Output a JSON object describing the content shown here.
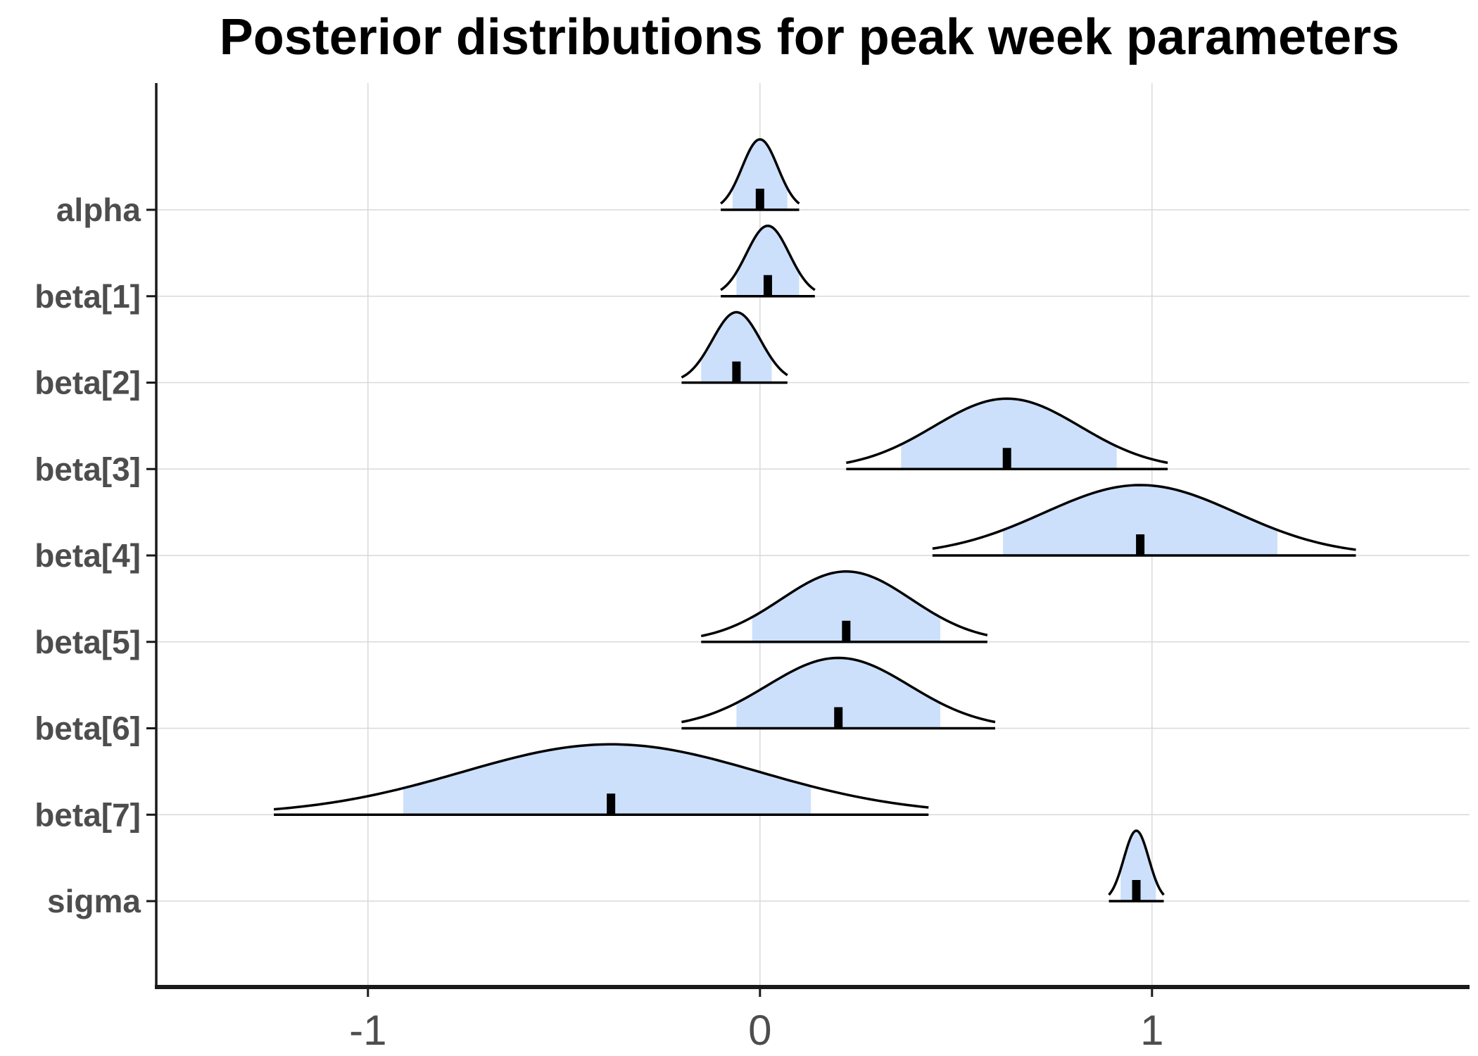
{
  "chart_data": {
    "type": "ridgeline",
    "title": "Posterior distributions for peak week parameters",
    "xlabel": "",
    "ylabel": "",
    "xlim": [
      -1.54,
      1.81
    ],
    "x_ticks": [
      -1,
      0,
      1
    ],
    "x_tick_labels": [
      "-1",
      "0",
      "1"
    ],
    "grid": true,
    "legend": "none",
    "colors": {
      "interval_fill": "#cce0fb",
      "curve": "#000000",
      "grid": "#d9d9d9",
      "axis": "#1a1a1a"
    },
    "parameters": [
      {
        "name": "alpha",
        "median": 0.0,
        "inner": [
          -0.07,
          0.07
        ],
        "outer": [
          -0.1,
          0.1
        ]
      },
      {
        "name": "beta[1]",
        "median": 0.02,
        "inner": [
          -0.06,
          0.1
        ],
        "outer": [
          -0.1,
          0.14
        ]
      },
      {
        "name": "beta[2]",
        "median": -0.06,
        "inner": [
          -0.15,
          0.03
        ],
        "outer": [
          -0.2,
          0.07
        ]
      },
      {
        "name": "beta[3]",
        "median": 0.63,
        "inner": [
          0.36,
          0.91
        ],
        "outer": [
          0.22,
          1.04
        ]
      },
      {
        "name": "beta[4]",
        "median": 0.97,
        "inner": [
          0.62,
          1.32
        ],
        "outer": [
          0.44,
          1.52
        ]
      },
      {
        "name": "beta[5]",
        "median": 0.22,
        "inner": [
          -0.02,
          0.46
        ],
        "outer": [
          -0.15,
          0.58
        ]
      },
      {
        "name": "beta[6]",
        "median": 0.2,
        "inner": [
          -0.06,
          0.46
        ],
        "outer": [
          -0.2,
          0.6
        ]
      },
      {
        "name": "beta[7]",
        "median": -0.38,
        "inner": [
          -0.91,
          0.13
        ],
        "outer": [
          -1.24,
          0.43
        ]
      },
      {
        "name": "sigma",
        "median": 0.96,
        "inner": [
          0.92,
          1.01
        ],
        "outer": [
          0.89,
          1.03
        ]
      }
    ]
  }
}
